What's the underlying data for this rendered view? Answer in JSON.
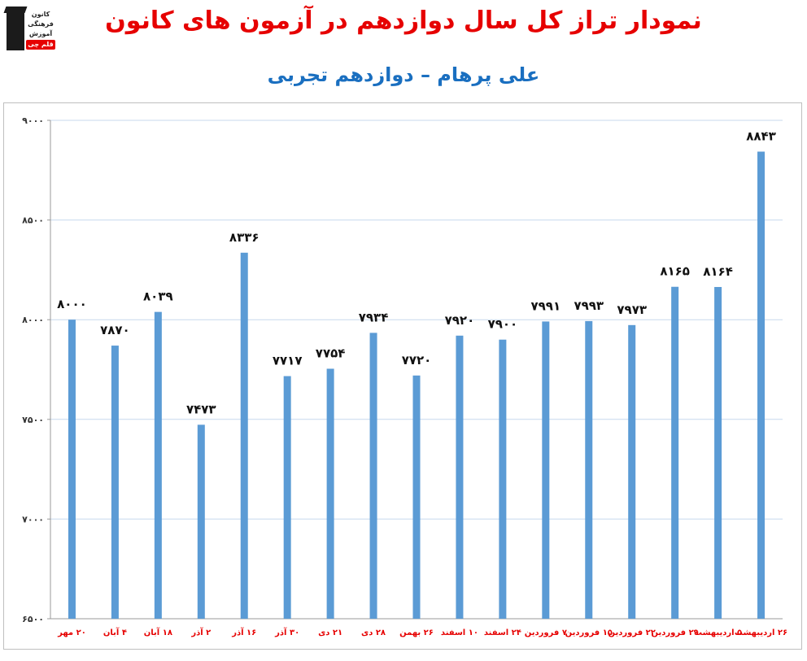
{
  "header": {
    "title": "نمودار تراز کل سال دوازدهم در آزمون های کانون",
    "subtitle": "علی پرهام – دوازدهم تجربی",
    "logo": {
      "lines": [
        "کانون",
        "فرهنگی",
        "آموزش"
      ],
      "tag": "قلم چی"
    }
  },
  "colors": {
    "bar": "#5b9bd5",
    "title": "#e60000",
    "subtitle": "#1a6fc0",
    "xtick": "#e60000",
    "grid": "#c7d9ee"
  },
  "chart_data": {
    "type": "bar",
    "title": "نمودار تراز کل سال دوازدهم در آزمون های کانون",
    "subtitle": "علی پرهام – دوازدهم تجربی",
    "xlabel": "",
    "ylabel": "",
    "ylim": [
      6500,
      9000
    ],
    "grid": true,
    "y_ticks": [
      6500,
      7000,
      7500,
      8000,
      8500,
      9000
    ],
    "y_tick_labels": [
      "۶۵۰۰",
      "۷۰۰۰",
      "۷۵۰۰",
      "۸۰۰۰",
      "۸۵۰۰",
      "۹۰۰۰"
    ],
    "categories": [
      "۲۰ مهر",
      "۴ آبان",
      "۱۸ آبان",
      "۲ آذر",
      "۱۶ آذر",
      "۳۰ آذر",
      "۲۱ دی",
      "۲۸ دی",
      "۲۶ بهمن",
      "۱۰ اسفند",
      "۲۴ اسفند",
      "۷ فروردین",
      "۱۵ فروردین",
      "۲۲ فروردین",
      "۲۹ فروردین",
      "۵ اردیبهشت",
      "۲۶ اردیبهشت"
    ],
    "values": [
      8000,
      7870,
      8039,
      7473,
      8336,
      7717,
      7754,
      7934,
      7720,
      7920,
      7900,
      7991,
      7993,
      7973,
      8165,
      8164,
      8843
    ],
    "value_labels": [
      "۸۰۰۰",
      "۷۸۷۰",
      "۸۰۳۹",
      "۷۴۷۳",
      "۸۳۳۶",
      "۷۷۱۷",
      "۷۷۵۴",
      "۷۹۳۴",
      "۷۷۲۰",
      "۷۹۲۰",
      "۷۹۰۰",
      "۷۹۹۱",
      "۷۹۹۳",
      "۷۹۷۳",
      "۸۱۶۵",
      "۸۱۶۴",
      "۸۸۴۳"
    ]
  }
}
